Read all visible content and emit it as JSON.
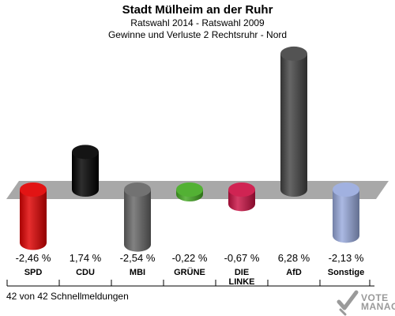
{
  "header": {
    "title": "Stadt Mülheim an der Ruhr",
    "subtitle": "Ratswahl 2014 - Ratswahl 2009",
    "subtitle2": "Gewinne und Verluste 2 Rechtsruhr - Nord"
  },
  "footer": {
    "status": "42 von 42 Schnellmeldungen"
  },
  "logo": {
    "line1": "VOTE",
    "line2": "MANAGER"
  },
  "chart_data": {
    "type": "bar",
    "title": "Stadt Mülheim an der Ruhr",
    "categories": [
      "SPD",
      "CDU",
      "MBI",
      "GRÜNE",
      "DIE LINKE",
      "AfD",
      "Sonstige"
    ],
    "category_lines": [
      [
        "SPD"
      ],
      [
        "CDU"
      ],
      [
        "MBI"
      ],
      [
        "GRÜNE"
      ],
      [
        "DIE",
        "LINKE"
      ],
      [
        "AfD"
      ],
      [
        "Sonstige"
      ]
    ],
    "values": [
      -2.46,
      1.74,
      -2.54,
      -0.22,
      -0.67,
      6.28,
      -2.13
    ],
    "value_labels": [
      "-2,46 %",
      "1,74 %",
      "-2,54 %",
      "-0,22 %",
      "-0,67 %",
      "6,28 %",
      "-2,13 %"
    ],
    "colors": [
      "#e00000",
      "#000000",
      "#666666",
      "#44aa22",
      "#cc1144",
      "#444444",
      "#99aadd"
    ],
    "unit": "%",
    "grid": false
  }
}
